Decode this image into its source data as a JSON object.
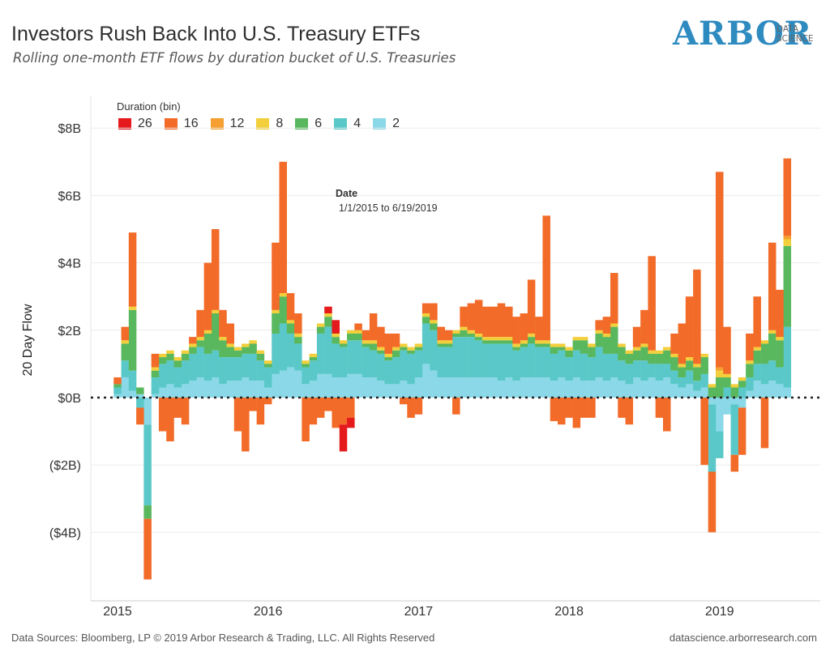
{
  "header": {
    "title": "Investors Rush Back Into U.S. Treasury ETFs",
    "subtitle": "Rolling  one-month ETF flows by duration bucket of U.S. Treasuries"
  },
  "logo": {
    "main": "ARBOR",
    "sub_line1": "DATA",
    "sub_line2": "SCIENCE",
    "color": "#2e8bc0"
  },
  "footer": {
    "left": "Data Sources: Bloomberg, LP © 2019 Arbor Research & Trading, LLC. All Rights Reserved",
    "right": "datascience.arborresearch.com"
  },
  "chart_data": {
    "type": "area",
    "stacked": true,
    "legend_title": "Duration (bin)",
    "legend_placement": "top-left",
    "ylabel": "20 Day Flow",
    "xlabel": "",
    "annotation": {
      "label": "Date",
      "value": "1/1/2015 to 6/19/2019"
    },
    "grid": true,
    "zero_line": "dotted",
    "xlim": [
      2015.0,
      2019.47
    ],
    "ylim": [
      -5.4,
      8.9
    ],
    "y_unit": "billions USD",
    "y_ticks": [
      {
        "value": 8,
        "label": "$8B"
      },
      {
        "value": 6,
        "label": "$6B"
      },
      {
        "value": 4,
        "label": "$4B"
      },
      {
        "value": 2,
        "label": "$2B"
      },
      {
        "value": 0,
        "label": "$0B"
      },
      {
        "value": -2,
        "label": "($2B)"
      },
      {
        "value": -4,
        "label": "($4B)"
      }
    ],
    "x_ticks": [
      {
        "value": 2015.0,
        "label": "2015"
      },
      {
        "value": 2016.0,
        "label": "2016"
      },
      {
        "value": 2017.0,
        "label": "2017"
      },
      {
        "value": 2018.0,
        "label": "2018"
      },
      {
        "value": 2019.0,
        "label": "2019"
      }
    ],
    "x": [
      2015.0,
      2015.05,
      2015.1,
      2015.15,
      2015.2,
      2015.25,
      2015.3,
      2015.35,
      2015.4,
      2015.45,
      2015.5,
      2015.55,
      2015.6,
      2015.65,
      2015.7,
      2015.75,
      2015.8,
      2015.85,
      2015.9,
      2015.95,
      2016.0,
      2016.05,
      2016.1,
      2016.15,
      2016.2,
      2016.25,
      2016.3,
      2016.35,
      2016.4,
      2016.45,
      2016.5,
      2016.55,
      2016.6,
      2016.65,
      2016.7,
      2016.75,
      2016.8,
      2016.85,
      2016.9,
      2016.95,
      2017.0,
      2017.05,
      2017.1,
      2017.15,
      2017.2,
      2017.25,
      2017.3,
      2017.35,
      2017.4,
      2017.45,
      2017.5,
      2017.55,
      2017.6,
      2017.65,
      2017.7,
      2017.75,
      2017.8,
      2017.85,
      2017.9,
      2017.95,
      2018.0,
      2018.05,
      2018.1,
      2018.15,
      2018.2,
      2018.25,
      2018.3,
      2018.35,
      2018.4,
      2018.45,
      2018.5,
      2018.55,
      2018.6,
      2018.65,
      2018.7,
      2018.75,
      2018.8,
      2018.85,
      2018.9,
      2018.95,
      2019.0,
      2019.05,
      2019.1,
      2019.15,
      2019.2,
      2019.25,
      2019.3,
      2019.35,
      2019.4,
      2019.45
    ],
    "series": [
      {
        "name": "2",
        "color": "#8ad8e8",
        "values": [
          0.1,
          0.6,
          0.2,
          0.1,
          -0.8,
          0.1,
          0.3,
          0.4,
          0.3,
          0.4,
          0.5,
          0.6,
          0.5,
          0.6,
          0.4,
          0.5,
          0.5,
          0.6,
          0.5,
          0.5,
          0.3,
          0.7,
          0.8,
          0.9,
          0.8,
          0.4,
          0.5,
          0.7,
          0.7,
          0.6,
          0.6,
          0.7,
          0.7,
          0.6,
          0.6,
          0.5,
          0.4,
          0.4,
          0.5,
          0.4,
          0.6,
          1.0,
          0.8,
          0.6,
          0.6,
          0.6,
          0.6,
          0.6,
          0.6,
          0.6,
          0.6,
          0.5,
          0.6,
          0.5,
          0.6,
          0.6,
          0.6,
          0.6,
          0.5,
          0.6,
          0.5,
          0.6,
          0.5,
          0.5,
          0.6,
          0.5,
          0.6,
          0.5,
          0.4,
          0.6,
          0.5,
          0.6,
          0.5,
          0.6,
          0.4,
          0.3,
          0.4,
          0.2,
          0.3,
          -0.2,
          -1.0,
          -0.5,
          -0.2,
          -0.3,
          0.2,
          0.5,
          0.4,
          0.5,
          0.4,
          0.3
        ]
      },
      {
        "name": "4",
        "color": "#5ac8c8",
        "values": [
          0.2,
          0.5,
          0.6,
          -0.3,
          -2.4,
          0.5,
          0.7,
          0.7,
          0.6,
          0.7,
          0.8,
          0.9,
          0.8,
          0.8,
          0.8,
          0.7,
          0.7,
          0.7,
          0.8,
          0.6,
          0.6,
          1.2,
          1.4,
          1.0,
          0.8,
          0.5,
          0.6,
          1.2,
          1.4,
          1.0,
          0.9,
          1.0,
          1.0,
          0.9,
          0.8,
          0.8,
          0.7,
          0.8,
          0.9,
          0.9,
          0.8,
          1.2,
          1.2,
          0.9,
          0.9,
          1.2,
          1.2,
          1.2,
          1.1,
          1.0,
          1.0,
          1.1,
          1.0,
          0.9,
          0.9,
          1.0,
          0.9,
          0.9,
          0.8,
          0.8,
          0.7,
          0.8,
          0.8,
          0.7,
          0.9,
          0.8,
          0.7,
          0.6,
          0.6,
          0.5,
          0.6,
          0.4,
          0.5,
          0.4,
          0.4,
          0.3,
          0.4,
          0.3,
          0.4,
          -2.0,
          -0.8,
          0.3,
          -1.5,
          0.3,
          0.4,
          0.5,
          0.6,
          0.6,
          0.5,
          1.8
        ]
      },
      {
        "name": "6",
        "color": "#59b75e",
        "values": [
          0.1,
          0.5,
          1.8,
          0.2,
          -0.4,
          0.2,
          0.2,
          0.2,
          0.2,
          0.2,
          0.2,
          0.2,
          0.6,
          1.1,
          0.5,
          0.3,
          0.2,
          0.2,
          0.3,
          0.2,
          0.1,
          0.6,
          0.8,
          0.3,
          0.2,
          0.1,
          0.1,
          0.2,
          0.3,
          0.2,
          0.1,
          0.2,
          0.2,
          0.1,
          0.2,
          0.1,
          0.1,
          0.2,
          0.1,
          0.1,
          0.1,
          0.2,
          0.2,
          0.1,
          0.1,
          0.1,
          0.2,
          0.1,
          0.1,
          0.1,
          0.1,
          0.1,
          0.1,
          0.1,
          0.1,
          0.2,
          0.1,
          0.1,
          0.2,
          0.1,
          0.2,
          0.3,
          0.4,
          0.3,
          0.4,
          0.5,
          0.8,
          0.4,
          0.3,
          0.3,
          0.4,
          0.3,
          0.3,
          0.4,
          0.4,
          0.3,
          0.3,
          0.4,
          0.5,
          0.3,
          0.6,
          0.3,
          0.3,
          0.2,
          0.4,
          0.4,
          0.6,
          0.8,
          0.8,
          2.4
        ]
      },
      {
        "name": "8",
        "color": "#f2cf3b",
        "values": [
          0.0,
          0.1,
          0.1,
          0.0,
          0.0,
          0.1,
          0.1,
          0.1,
          0.1,
          0.1,
          0.1,
          0.1,
          0.1,
          0.1,
          0.1,
          0.1,
          0.1,
          0.1,
          0.1,
          0.1,
          0.1,
          0.1,
          0.1,
          0.1,
          0.1,
          0.1,
          0.1,
          0.1,
          0.1,
          0.1,
          0.1,
          0.1,
          0.1,
          0.1,
          0.1,
          0.1,
          0.1,
          0.1,
          0.1,
          0.1,
          0.1,
          0.1,
          0.1,
          0.1,
          0.1,
          0.1,
          0.1,
          0.1,
          0.1,
          0.1,
          0.1,
          0.1,
          0.1,
          0.1,
          0.1,
          0.1,
          0.1,
          0.1,
          0.1,
          0.1,
          0.1,
          0.1,
          0.1,
          0.1,
          0.1,
          0.1,
          0.1,
          0.1,
          0.1,
          0.1,
          0.1,
          0.1,
          0.1,
          0.1,
          0.1,
          0.1,
          0.1,
          0.1,
          0.1,
          0.1,
          0.2,
          0.1,
          0.1,
          0.1,
          0.1,
          0.1,
          0.1,
          0.1,
          0.1,
          0.2
        ]
      },
      {
        "name": "12",
        "color": "#f5a030",
        "values": [
          0.0,
          0.0,
          0.0,
          0.0,
          0.0,
          0.0,
          0.0,
          0.0,
          0.0,
          0.0,
          0.0,
          0.0,
          0.0,
          0.0,
          0.0,
          0.0,
          0.0,
          0.0,
          0.0,
          0.0,
          0.0,
          0.0,
          0.0,
          0.0,
          0.0,
          0.0,
          0.0,
          0.0,
          0.0,
          0.0,
          0.0,
          0.0,
          0.0,
          0.0,
          0.0,
          0.0,
          0.0,
          0.0,
          0.0,
          0.0,
          0.0,
          0.0,
          0.0,
          0.0,
          0.0,
          0.0,
          0.0,
          0.0,
          0.0,
          0.0,
          0.0,
          0.0,
          0.0,
          0.0,
          0.0,
          0.0,
          0.0,
          0.0,
          0.0,
          0.0,
          0.0,
          0.0,
          0.0,
          0.0,
          0.0,
          0.0,
          0.0,
          0.0,
          0.0,
          0.0,
          0.0,
          0.0,
          0.0,
          0.0,
          0.0,
          0.0,
          0.0,
          0.0,
          0.0,
          0.0,
          0.1,
          0.0,
          0.0,
          0.0,
          0.0,
          0.0,
          0.0,
          0.0,
          0.0,
          0.1
        ]
      },
      {
        "name": "16",
        "color": "#f26b28",
        "values": [
          0.2,
          0.4,
          2.2,
          -0.5,
          -1.8,
          0.4,
          -1.0,
          -1.3,
          -0.6,
          -0.8,
          0.2,
          0.8,
          2.0,
          2.4,
          0.8,
          0.6,
          -1.0,
          -1.6,
          -0.4,
          -0.8,
          -0.2,
          2.0,
          3.9,
          0.8,
          0.6,
          -1.3,
          -0.8,
          -0.6,
          -0.4,
          -0.9,
          -0.8,
          -0.6,
          0.2,
          0.3,
          0.8,
          0.6,
          0.6,
          0.4,
          -0.2,
          -0.6,
          -0.5,
          0.3,
          0.5,
          0.4,
          0.3,
          -0.5,
          0.6,
          0.8,
          1.0,
          0.9,
          0.9,
          1.0,
          0.9,
          0.8,
          0.8,
          1.6,
          0.7,
          3.7,
          -0.7,
          -0.8,
          -0.6,
          -0.9,
          -0.6,
          -0.6,
          0.3,
          0.5,
          1.5,
          -0.6,
          -0.8,
          0.6,
          1.0,
          2.8,
          -0.6,
          -1.0,
          0.6,
          1.2,
          1.8,
          2.8,
          -2.0,
          -1.8,
          5.8,
          1.4,
          -0.5,
          -1.4,
          0.8,
          1.5,
          -1.5,
          2.6,
          1.4,
          2.3
        ]
      },
      {
        "name": "26",
        "color": "#e41a1c",
        "values": [
          0.0,
          0.0,
          0.0,
          0.0,
          0.0,
          0.0,
          0.0,
          0.0,
          0.0,
          0.0,
          0.0,
          0.0,
          0.0,
          0.0,
          0.0,
          0.0,
          0.0,
          0.0,
          0.0,
          0.0,
          0.0,
          0.0,
          0.0,
          0.0,
          0.0,
          0.0,
          0.0,
          0.0,
          0.2,
          0.4,
          -0.8,
          -0.3,
          0.0,
          0.0,
          0.0,
          0.0,
          0.0,
          0.0,
          0.0,
          0.0,
          0.0,
          0.0,
          0.0,
          0.0,
          0.0,
          0.0,
          0.0,
          0.0,
          0.0,
          0.0,
          0.0,
          0.0,
          0.0,
          0.0,
          0.0,
          0.0,
          0.0,
          0.0,
          0.0,
          0.0,
          0.0,
          0.0,
          0.0,
          0.0,
          0.0,
          0.0,
          0.0,
          0.0,
          0.0,
          0.0,
          0.0,
          0.0,
          0.0,
          0.0,
          0.0,
          0.0,
          0.0,
          0.0,
          0.0,
          0.0,
          0.0,
          0.0,
          0.0,
          0.0,
          0.0,
          0.0,
          0.0,
          0.0,
          0.0,
          0.0
        ]
      }
    ],
    "legend_order": [
      "26",
      "16",
      "12",
      "8",
      "6",
      "4",
      "2"
    ]
  }
}
